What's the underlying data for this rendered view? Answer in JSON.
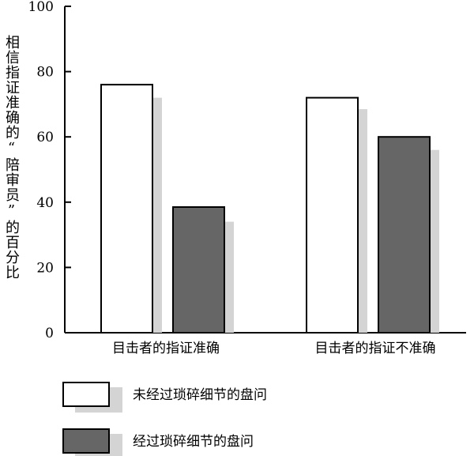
{
  "chart_data": {
    "type": "bar",
    "categories": [
      "目击者的指证准确",
      "目击者的指证不准确"
    ],
    "series": [
      {
        "name": "未经过琐碎细节的盘问",
        "values": [
          76,
          72
        ],
        "color": "#ffffff",
        "shadow_values": [
          72,
          68.5
        ]
      },
      {
        "name": "经过琐碎细节的盘问",
        "values": [
          38.5,
          60
        ],
        "color": "#666666",
        "shadow_values": [
          34,
          56
        ]
      }
    ],
    "shadow_color": "#d4d4d4",
    "ylim": [
      0,
      100
    ],
    "yticks": [
      "0",
      "20",
      "40",
      "60",
      "80",
      "100"
    ],
    "ylabel": "相信指证准确的“陪审员”的百分比",
    "xlabel": "",
    "title": "",
    "grid": false,
    "legend_position": "bottom-left"
  }
}
